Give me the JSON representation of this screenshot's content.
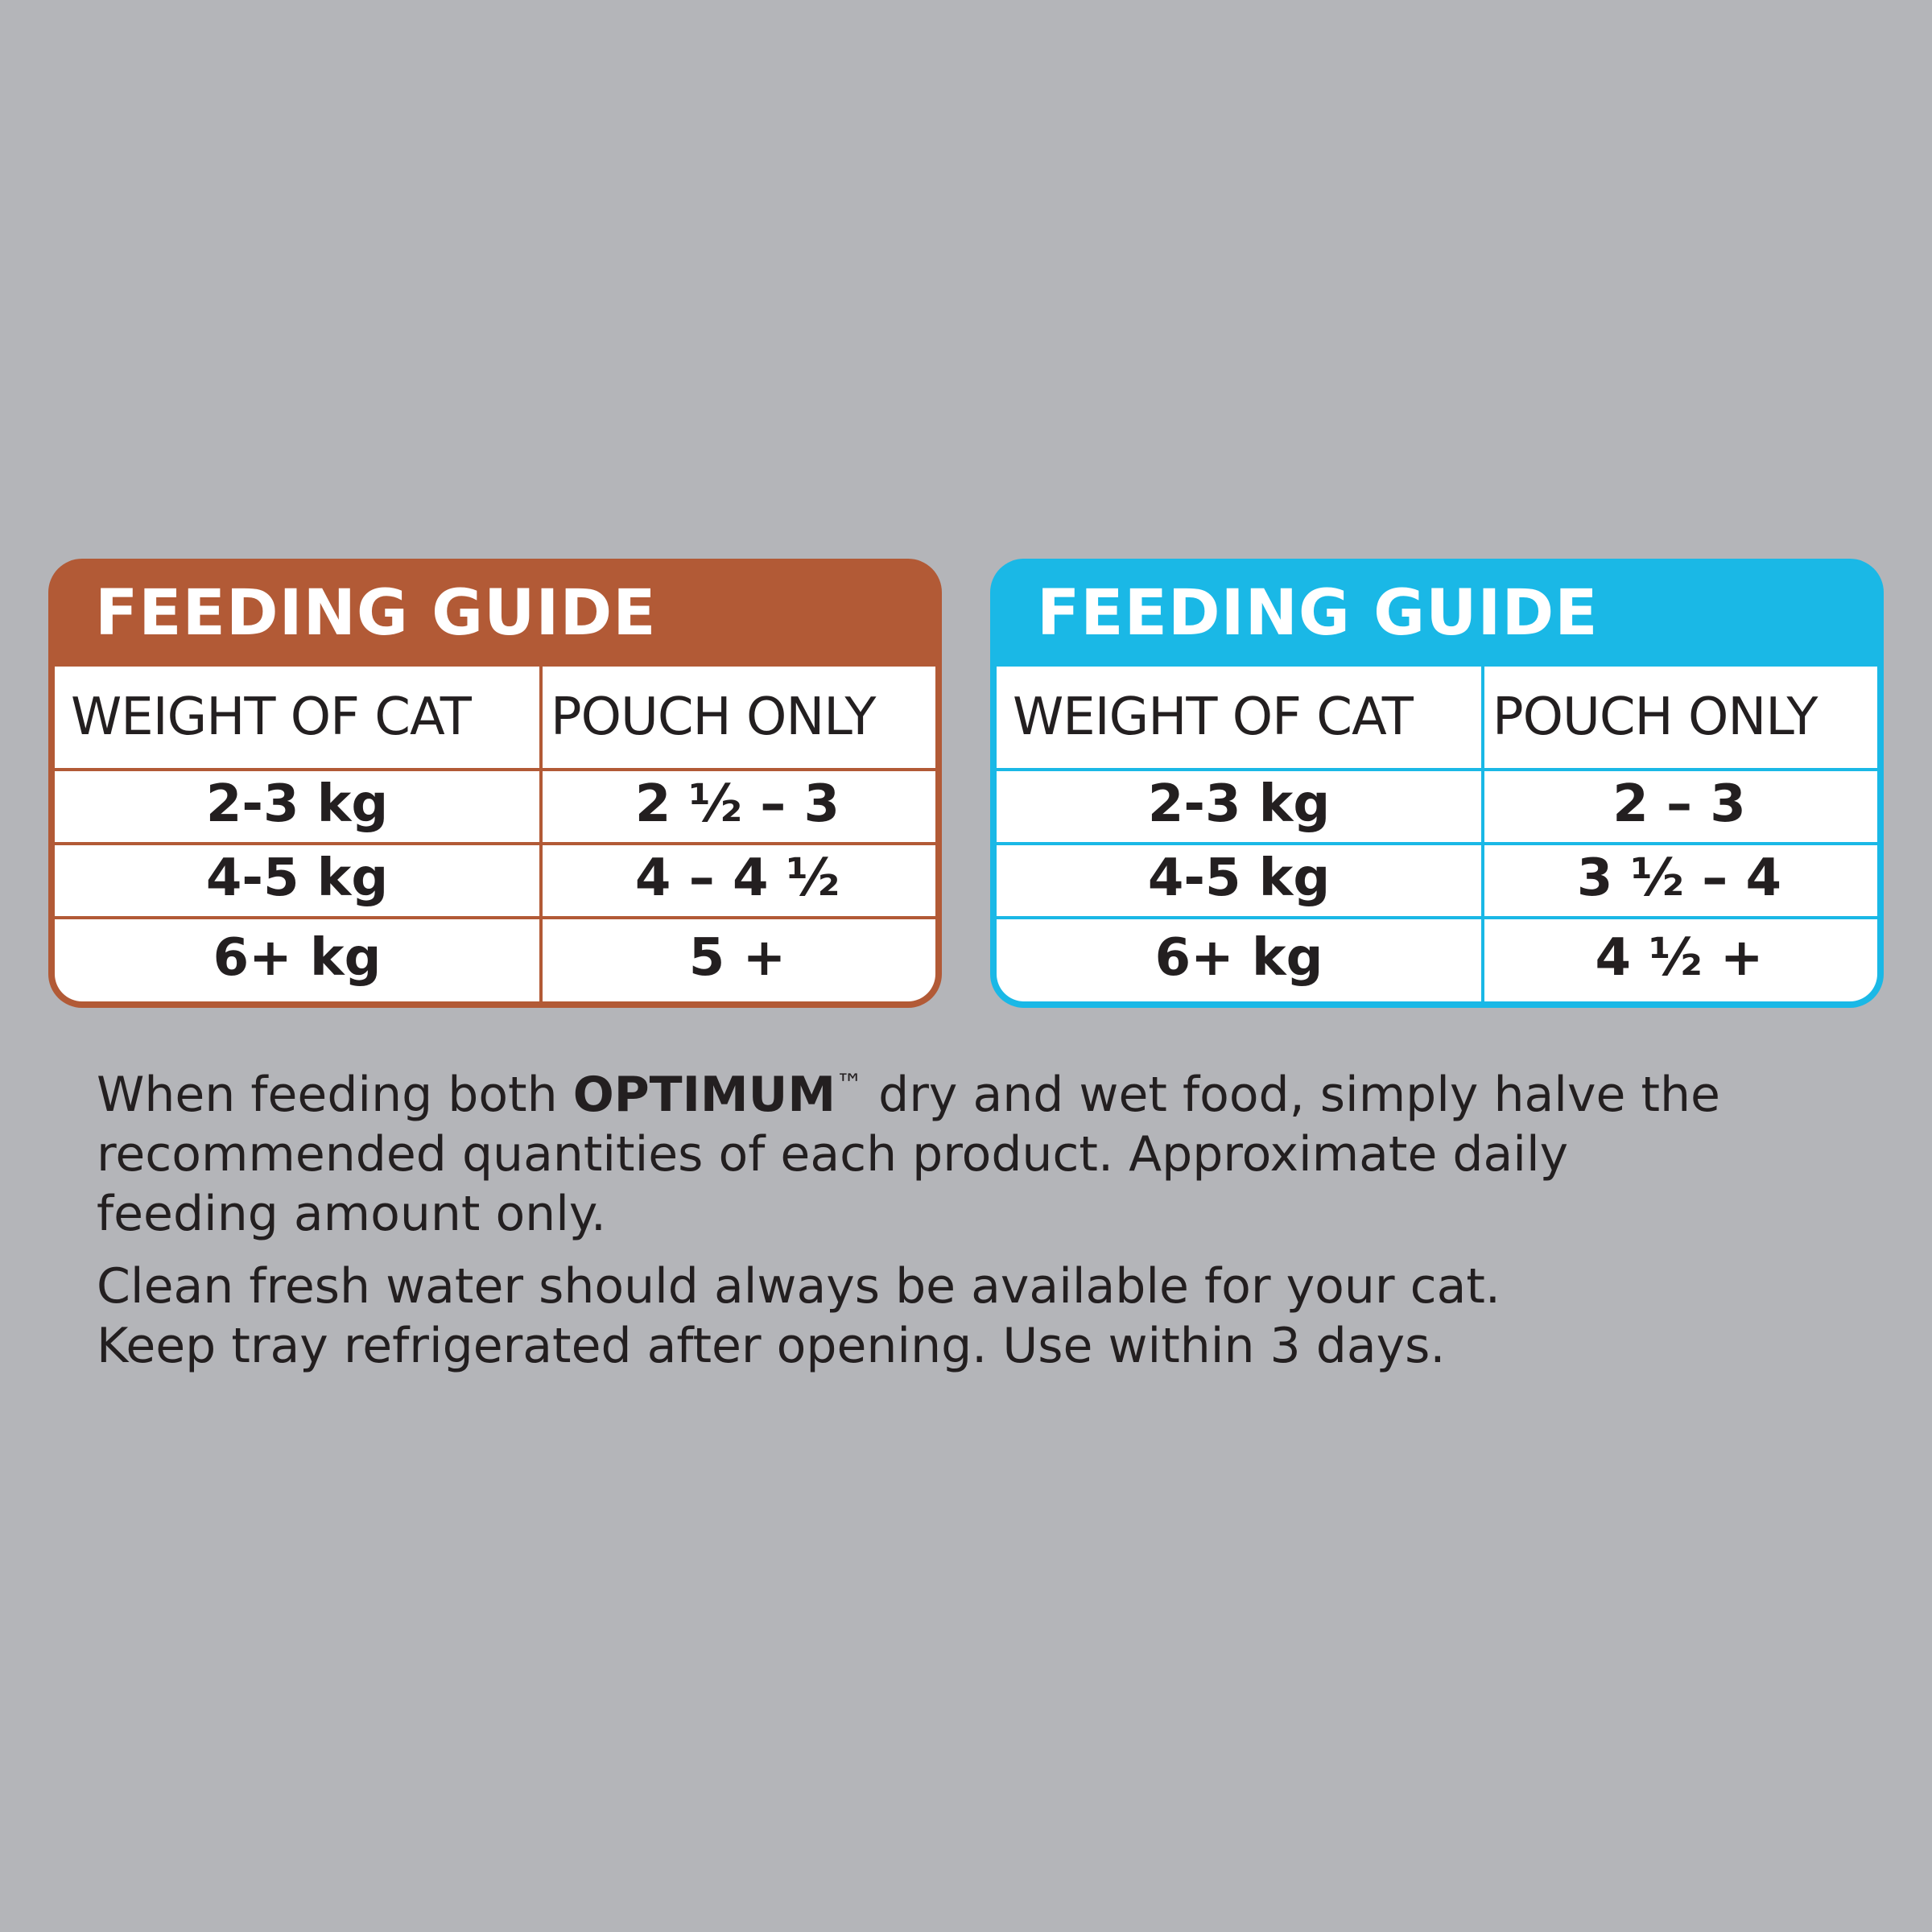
{
  "background_color": "#b4b5b9",
  "guides": [
    {
      "accent": "#b25a36",
      "title": "FEEDING GUIDE",
      "headers": [
        "WEIGHT OF CAT",
        "POUCH ONLY"
      ],
      "rows": [
        {
          "weight": "2-3 kg",
          "pouches": "2 ½ – 3"
        },
        {
          "weight": "4-5 kg",
          "pouches": "4 – 4 ½"
        },
        {
          "weight": "6+ kg",
          "pouches": "5 +"
        }
      ]
    },
    {
      "accent": "#1ab8e6",
      "title": "FEEDING GUIDE",
      "headers": [
        "WEIGHT OF CAT",
        "POUCH ONLY"
      ],
      "rows": [
        {
          "weight": "2-3 kg",
          "pouches": "2 – 3"
        },
        {
          "weight": "4-5 kg",
          "pouches": "3 ½ – 4"
        },
        {
          "weight": "6+ kg",
          "pouches": "4 ½ +"
        }
      ]
    }
  ],
  "notes": {
    "line1_pre": "When feeding both ",
    "brand": "OPTIMUM",
    "trademark": "™",
    "line1_post": " dry and wet food, simply halve the",
    "line2": "recommended quantities of each product. Approximate daily",
    "line3": "feeding amount only.",
    "line4": "Clean fresh water should always be available for your cat.",
    "line5": "Keep tray refrigerated after opening. Use within 3 days."
  }
}
